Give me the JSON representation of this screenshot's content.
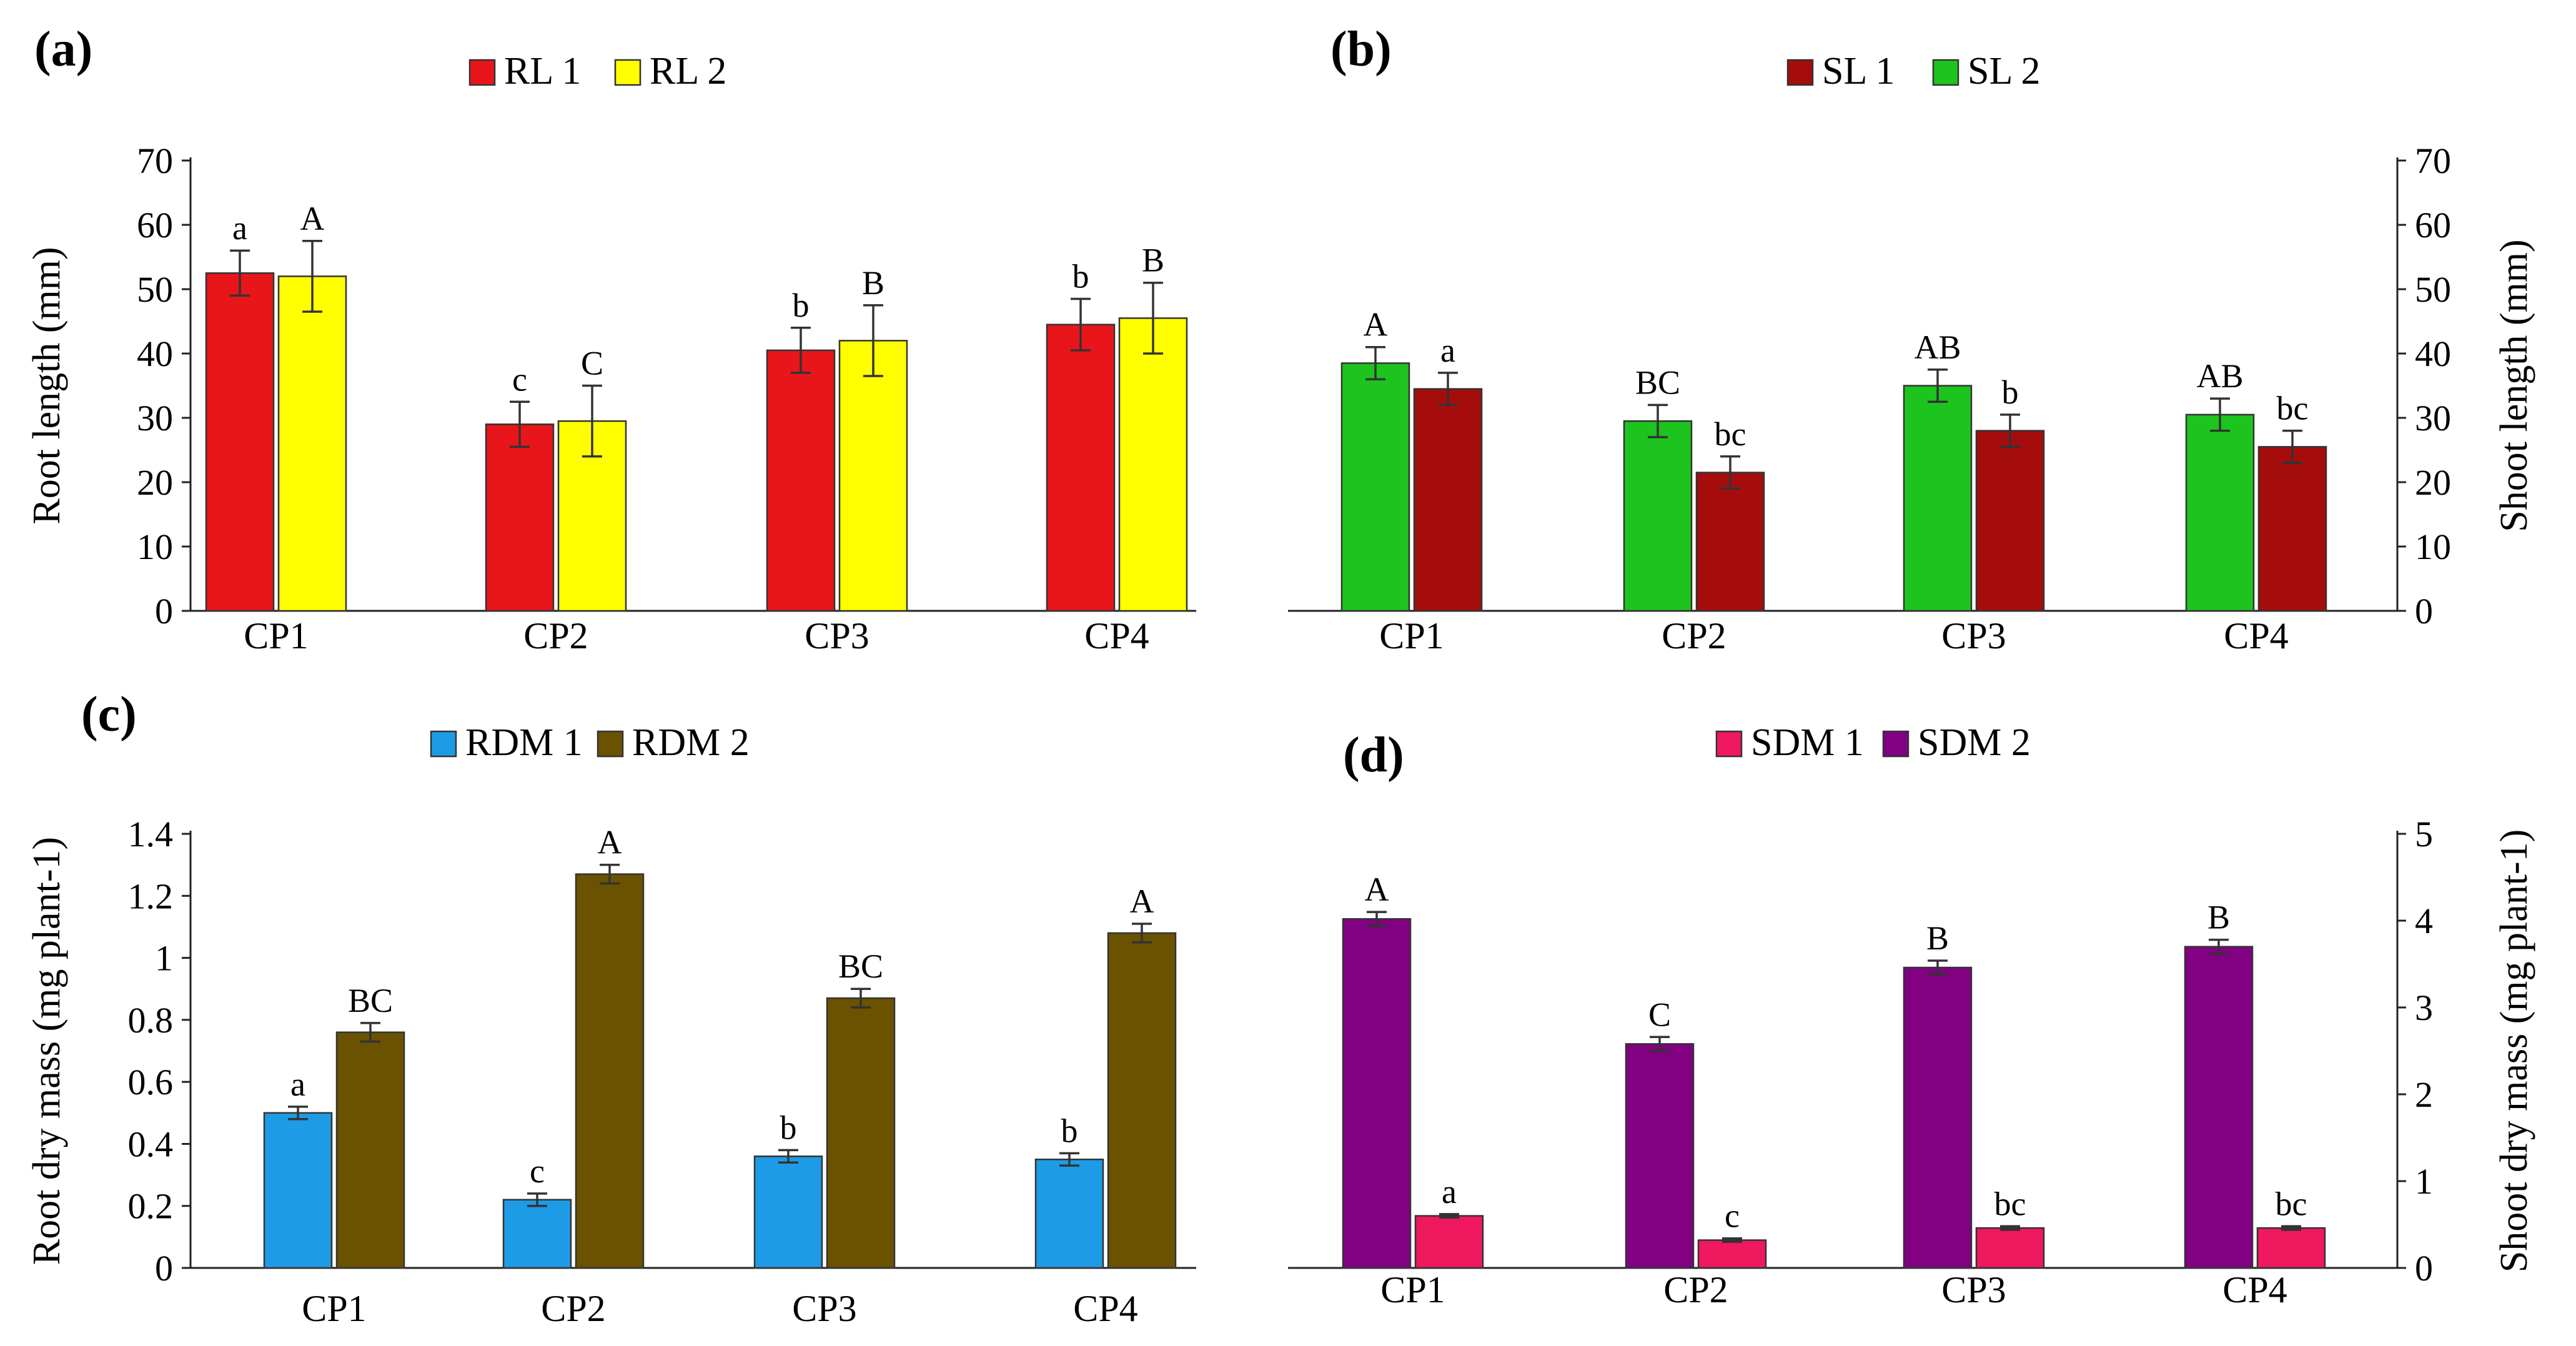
{
  "chart_data": [
    {
      "id": "a",
      "panel_label": "(a)",
      "type": "bar",
      "categories": [
        "CP1",
        "CP2",
        "CP3",
        "CP4"
      ],
      "ylabel": "Root length (mm)",
      "ylim": [
        0,
        70
      ],
      "yticks": [
        "0",
        "10",
        "20",
        "30",
        "40",
        "50",
        "60",
        "70"
      ],
      "yaxis_side": "left",
      "legend_position": "top-center",
      "series": [
        {
          "name": "RL 1",
          "color": "#e8161b",
          "values": [
            52.5,
            29,
            40.5,
            44.5
          ],
          "errors": [
            3.5,
            3.5,
            3.5,
            4
          ],
          "labels": [
            "a",
            "c",
            "b",
            "b"
          ]
        },
        {
          "name": "RL 2",
          "color": "#ffff00",
          "values": [
            52,
            29.5,
            42,
            45.5
          ],
          "errors": [
            5.5,
            5.5,
            5.5,
            5.5
          ],
          "labels": [
            "A",
            "C",
            "B",
            "B"
          ]
        }
      ]
    },
    {
      "id": "b",
      "panel_label": "(b)",
      "type": "bar",
      "categories": [
        "CP1",
        "CP2",
        "CP3",
        "CP4"
      ],
      "ylabel": "Shoot length (mm)",
      "ylim": [
        0,
        70
      ],
      "yticks": [
        "0",
        "10",
        "20",
        "30",
        "40",
        "50",
        "60",
        "70"
      ],
      "yaxis_side": "right",
      "legend_position": "top-center",
      "legend_order": [
        1,
        0
      ],
      "series": [
        {
          "name": "SL 2",
          "color": "#1dc41d",
          "values": [
            38.5,
            29.5,
            35,
            30.5
          ],
          "errors": [
            2.5,
            2.5,
            2.5,
            2.5
          ],
          "labels": [
            "A",
            "BC",
            "AB",
            "AB"
          ]
        },
        {
          "name": "SL 1",
          "color": "#a50d0d",
          "values": [
            34.5,
            21.5,
            28,
            25.5
          ],
          "errors": [
            2.5,
            2.5,
            2.5,
            2.5
          ],
          "labels": [
            "a",
            "bc",
            "b",
            "bc"
          ]
        }
      ]
    },
    {
      "id": "c",
      "panel_label": "(c)",
      "type": "bar",
      "categories": [
        "CP1",
        "CP2",
        "CP3",
        "CP4"
      ],
      "ylabel": "Root dry mass (mg plant-1)",
      "ylim": [
        0,
        1.4
      ],
      "yticks": [
        "0",
        "0.2",
        "0.4",
        "0.6",
        "0.8",
        "1",
        "1.2",
        "1.4"
      ],
      "yaxis_side": "left",
      "legend_position": "top-center",
      "series": [
        {
          "name": "RDM 1",
          "color": "#1e9be6",
          "values": [
            0.5,
            0.22,
            0.36,
            0.35
          ],
          "errors": [
            0.02,
            0.02,
            0.02,
            0.02
          ],
          "labels": [
            "a",
            "c",
            "b",
            "b"
          ]
        },
        {
          "name": "RDM 2",
          "color": "#6b5200",
          "values": [
            0.76,
            1.27,
            0.87,
            1.08
          ],
          "errors": [
            0.03,
            0.03,
            0.03,
            0.03
          ],
          "labels": [
            "BC",
            "A",
            "BC",
            "A"
          ]
        }
      ]
    },
    {
      "id": "d",
      "panel_label": "(d)",
      "type": "bar",
      "categories": [
        "CP1",
        "CP2",
        "CP3",
        "CP4"
      ],
      "ylabel": "Shoot dry mass (mg plant-1)",
      "ylim": [
        0,
        5
      ],
      "yticks": [
        "0",
        "1",
        "2",
        "3",
        "4",
        "5"
      ],
      "yaxis_side": "right",
      "legend_position": "top-center",
      "legend_order": [
        1,
        0
      ],
      "series": [
        {
          "name": "SDM 2",
          "color": "#820082",
          "values": [
            4.02,
            2.58,
            3.46,
            3.7
          ],
          "errors": [
            0.08,
            0.08,
            0.08,
            0.08
          ],
          "labels": [
            "A",
            "C",
            "B",
            "B"
          ]
        },
        {
          "name": "SDM 1",
          "color": "#f0185f",
          "values": [
            0.6,
            0.32,
            0.46,
            0.46
          ],
          "errors": [
            0.02,
            0.02,
            0.02,
            0.02
          ],
          "labels": [
            "a",
            "c",
            "bc",
            "bc"
          ]
        }
      ]
    }
  ]
}
